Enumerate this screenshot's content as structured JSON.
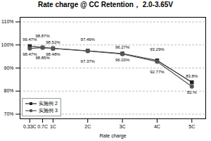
{
  "chart_data": {
    "type": "line",
    "title": "Rate charge @ CC Retention， 2.0-3.65V",
    "xlabel": "Rate charge",
    "x": [
      0.33,
      0.7,
      1,
      2,
      3,
      4,
      5
    ],
    "series": [
      {
        "name": "实施例 2",
        "color": "#222222",
        "marker": "square",
        "line_style": "solid",
        "values": [
          99.47,
          98.87,
          98.52,
          97.49,
          96.27,
          93.29,
          83.8
        ],
        "value_labels": [
          "99.47%",
          "98.87%",
          "98.52%",
          "97.49%",
          "96.27%",
          "93.29%",
          "83.8%"
        ]
      },
      {
        "name": "实施例 3",
        "color": "#555555",
        "marker": "circle",
        "line_style": "solid",
        "values": [
          98.47,
          98.85,
          98.48,
          97.37,
          96.03,
          92.77,
          82.0
        ],
        "value_labels": [
          "98.47%",
          "98.85%",
          "98.48%",
          "97.37%",
          "96.03%",
          "92.77%",
          "82.%"
        ]
      }
    ],
    "xlim": [
      0.05,
      5.4
    ],
    "xticks": [
      {
        "value": 0.33,
        "label": "0.33C"
      },
      {
        "value": 0.7,
        "label": "0.7C"
      },
      {
        "value": 1,
        "label": "1C"
      },
      {
        "value": 2,
        "label": "2C"
      },
      {
        "value": 3,
        "label": "3C"
      },
      {
        "value": 4,
        "label": "4C"
      },
      {
        "value": 5,
        "label": "5C"
      }
    ],
    "ylim": [
      68,
      112
    ],
    "yticks": [
      {
        "value": 70,
        "label": "70%"
      },
      {
        "value": 80,
        "label": "80%"
      },
      {
        "value": 90,
        "label": "90%"
      },
      {
        "value": 100,
        "label": "100%"
      },
      {
        "value": 110,
        "label": "110%"
      }
    ],
    "grid": true,
    "legend": "lower left",
    "data_labels": true
  }
}
